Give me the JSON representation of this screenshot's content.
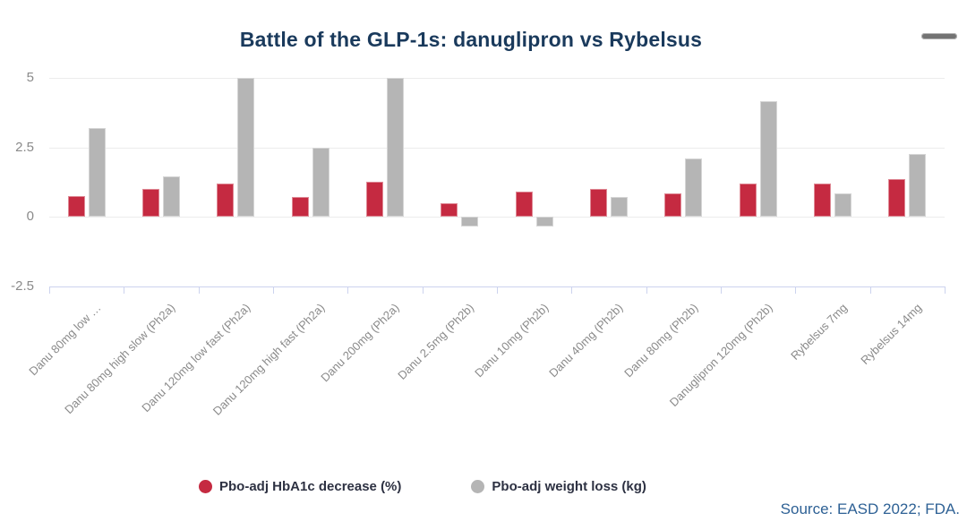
{
  "header": {
    "title": "Battle of the GLP-1s: danuglipron vs Rybelsus"
  },
  "footer": {
    "source": "Source: EASD 2022; FDA."
  },
  "colors": {
    "background": "#ffffff",
    "title_text": "#1a3a5c",
    "axis_label_text": "#8a8a8a",
    "gridline": "#ececec",
    "category_axis": "#ccd3ee",
    "legend_text": "#2d3142",
    "source_text": "#2e6195",
    "menu_icon": "#737373",
    "series_red": "#c52a41",
    "series_gray": "#b5b5b5"
  },
  "chart_data": {
    "type": "bar",
    "title": "Battle of the GLP-1s: danuglipron vs Rybelsus",
    "categories": [
      "Danu 80mg low …",
      "Danu 80mg high slow (Ph2a)",
      "Danu 120mg low fast (Ph2a)",
      "Danu 120mg high fast (Ph2a)",
      "Danu 200mg (Ph2a)",
      "Danu 2.5mg (Ph2b)",
      "Danu 10mg (Ph2b)",
      "Danu 40mg (Ph2b)",
      "Danu 80mg (Ph2b)",
      "Danuglipron 120mg (Ph2b)",
      "Rybelsus 7mg",
      "Rybelsus 14mg"
    ],
    "series": [
      {
        "name": "Pbo-adj HbA1c decrease (%)",
        "color": "#c52a41",
        "values": [
          0.75,
          1.0,
          1.2,
          0.7,
          1.25,
          0.5,
          0.9,
          1.0,
          0.85,
          1.2,
          1.2,
          1.35
        ]
      },
      {
        "name": "Pbo-adj weight loss (kg)",
        "color": "#b5b5b5",
        "values": [
          3.2,
          1.45,
          5.0,
          2.5,
          5.0,
          -0.35,
          -0.35,
          0.7,
          2.1,
          4.15,
          0.85,
          2.25
        ]
      }
    ],
    "xlabel": "",
    "ylabel": "",
    "ylim": [
      -2.5,
      5
    ],
    "yticks": [
      5,
      2.5,
      0,
      -2.5
    ],
    "grid": true,
    "legend_position": "bottom"
  }
}
